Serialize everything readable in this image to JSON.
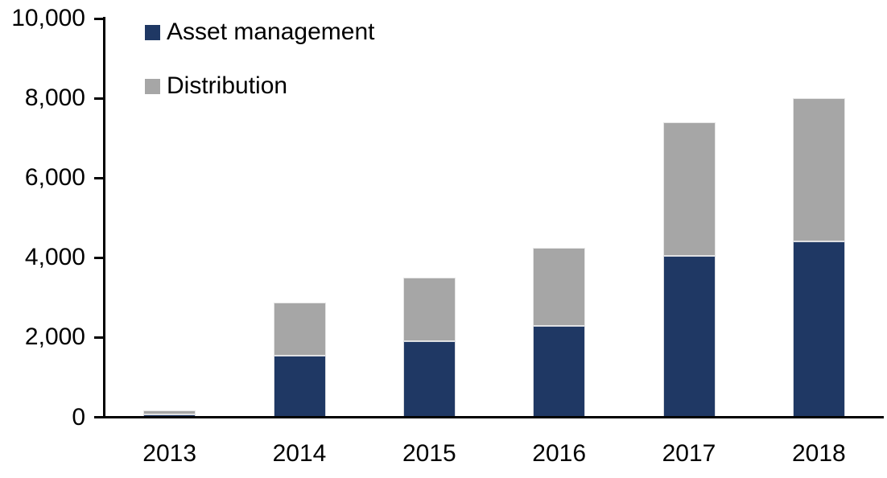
{
  "chart_data": {
    "type": "bar",
    "stacked": true,
    "title": "",
    "xlabel": "",
    "ylabel": "",
    "categories": [
      "2013",
      "2014",
      "2015",
      "2016",
      "2017",
      "2018"
    ],
    "series": [
      {
        "name": "Asset management",
        "color": "#1F3864",
        "values": [
          75,
          1550,
          1900,
          2300,
          4050,
          4420
        ]
      },
      {
        "name": "Distribution",
        "color": "#A6A6A6",
        "values": [
          100,
          1320,
          1600,
          1950,
          3350,
          3580
        ]
      }
    ],
    "totals": [
      175,
      2870,
      3500,
      4250,
      7400,
      8000
    ],
    "ylim": [
      0,
      10000
    ],
    "ytick_interval": 2000,
    "ytick_labels": [
      "0",
      "2,000",
      "4,000",
      "6,000",
      "8,000",
      "10,000"
    ],
    "grid": false,
    "legend_position": "top-left-inside",
    "axis_color": "#000000",
    "text_color": "#000000",
    "background_color": "#FFFFFF"
  }
}
